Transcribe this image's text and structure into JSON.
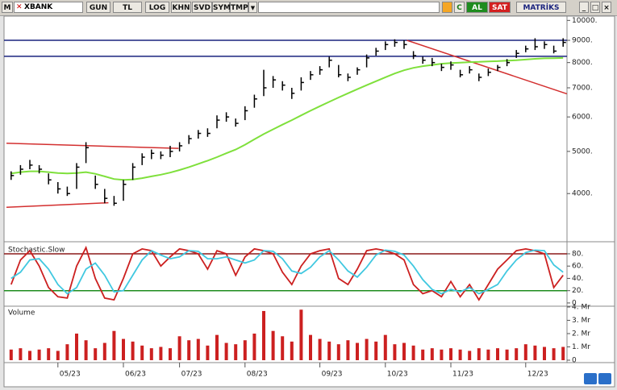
{
  "toolbar": {
    "menu": "M",
    "symbol": "XBANK",
    "buttons": [
      "GUN",
      "TL",
      "LOG",
      "KHN",
      "SVD",
      "SYM",
      "TMP"
    ],
    "buy": "AL",
    "sell": "SAT",
    "brand": "MATRİKS"
  },
  "chart_data": [
    {
      "type": "ohlc",
      "log_scale": true,
      "color": "#000000",
      "categories": [
        null,
        null,
        null,
        null,
        null,
        "05/23",
        null,
        null,
        null,
        null,
        null,
        null,
        "06/23",
        null,
        null,
        null,
        null,
        null,
        "07/23",
        null,
        null,
        null,
        null,
        null,
        null,
        "08/23",
        null,
        null,
        null,
        null,
        null,
        null,
        null,
        "09/23",
        null,
        null,
        null,
        null,
        null,
        null,
        "10/23",
        null,
        null,
        null,
        null,
        null,
        null,
        "11/23",
        null,
        null,
        null,
        null,
        null,
        null,
        null,
        "12/23",
        null,
        null,
        null,
        null
      ],
      "high": [
        4500,
        4650,
        4780,
        4650,
        4450,
        4250,
        4150,
        4700,
        5250,
        4400,
        4100,
        3950,
        4300,
        4700,
        4950,
        5050,
        5000,
        5150,
        5250,
        5450,
        5600,
        5650,
        6050,
        6150,
        5950,
        6350,
        6750,
        7700,
        7450,
        7250,
        7000,
        7400,
        7650,
        7850,
        8250,
        7900,
        7550,
        7800,
        8350,
        8650,
        8950,
        9050,
        9000,
        8500,
        8250,
        8200,
        7950,
        8050,
        7700,
        7850,
        7550,
        7750,
        7900,
        8150,
        8550,
        8750,
        9100,
        8950,
        8750,
        9100
      ],
      "low": [
        4300,
        4420,
        4550,
        4450,
        4200,
        4000,
        3950,
        4100,
        4700,
        4100,
        3800,
        3750,
        3850,
        4300,
        4650,
        4800,
        4800,
        4850,
        5000,
        5200,
        5350,
        5400,
        5650,
        5850,
        5700,
        5900,
        6300,
        6700,
        7000,
        6900,
        6600,
        6900,
        7300,
        7500,
        7800,
        7400,
        7250,
        7500,
        7800,
        8300,
        8550,
        8700,
        8600,
        8150,
        7950,
        7850,
        7650,
        7700,
        7400,
        7550,
        7250,
        7450,
        7650,
        7850,
        8200,
        8450,
        8550,
        8600,
        8400,
        8700
      ],
      "close": [
        4400,
        4550,
        4650,
        4550,
        4300,
        4100,
        4000,
        4600,
        5100,
        4200,
        3900,
        3800,
        4200,
        4600,
        4850,
        4950,
        4900,
        5000,
        5150,
        5350,
        5500,
        5500,
        5900,
        6000,
        5800,
        6200,
        6600,
        7000,
        7300,
        7100,
        6800,
        7200,
        7500,
        7700,
        8100,
        7500,
        7400,
        7700,
        8200,
        8500,
        8800,
        8900,
        8800,
        8300,
        8100,
        8000,
        7800,
        7900,
        7500,
        7700,
        7400,
        7600,
        7800,
        8000,
        8400,
        8600,
        8700,
        8800,
        8500,
        8900
      ],
      "moving_average": {
        "color": "#7fe03c",
        "values": [
          4450,
          4480,
          4500,
          4500,
          4480,
          4460,
          4450,
          4460,
          4480,
          4440,
          4380,
          4320,
          4300,
          4310,
          4340,
          4380,
          4420,
          4470,
          4530,
          4600,
          4680,
          4760,
          4850,
          4950,
          5050,
          5180,
          5330,
          5480,
          5620,
          5760,
          5900,
          6050,
          6200,
          6350,
          6500,
          6650,
          6800,
          6950,
          7100,
          7250,
          7400,
          7550,
          7680,
          7780,
          7850,
          7900,
          7950,
          7980,
          8000,
          8020,
          8030,
          8050,
          8060,
          8080,
          8100,
          8130,
          8160,
          8180,
          8190,
          8200
        ]
      },
      "hlines": [
        {
          "value": 9000,
          "color": "#1a237e"
        },
        {
          "value": 8270,
          "color": "#1a237e"
        }
      ],
      "trend_lines": [
        {
          "color": "#d32f2f",
          "start": [
            -0.5,
            5220
          ],
          "end": [
            17.9,
            5080
          ]
        },
        {
          "color": "#d32f2f",
          "start": [
            -0.5,
            3720
          ],
          "end": [
            10.4,
            3810
          ]
        },
        {
          "color": "#d32f2f",
          "start": [
            42.3,
            9000
          ],
          "end": [
            59.4,
            6780
          ]
        }
      ],
      "ylim": [
        3100,
        10230
      ],
      "yticks": [
        {
          "value": 10000,
          "label": "10000."
        },
        {
          "value": 9000,
          "label": "9000."
        },
        {
          "value": 8000,
          "label": "8000."
        },
        {
          "value": 7000,
          "label": "7000."
        },
        {
          "value": 6000,
          "label": "6000."
        },
        {
          "value": 5000,
          "label": "5000."
        },
        {
          "value": 4000,
          "label": "4000."
        }
      ]
    },
    {
      "type": "line",
      "title": "Stochastic.Slow",
      "series": [
        {
          "color": "#cc2020",
          "values": [
            30,
            70,
            85,
            60,
            25,
            10,
            8,
            60,
            90,
            40,
            8,
            5,
            40,
            80,
            88,
            85,
            60,
            75,
            88,
            85,
            80,
            55,
            85,
            80,
            45,
            75,
            88,
            85,
            80,
            50,
            30,
            60,
            80,
            85,
            88,
            40,
            30,
            55,
            85,
            88,
            85,
            80,
            70,
            30,
            15,
            20,
            10,
            35,
            10,
            30,
            5,
            30,
            55,
            70,
            85,
            88,
            85,
            80,
            25,
            45
          ]
        },
        {
          "color": "#40c8e0",
          "values": [
            40,
            50,
            70,
            72,
            55,
            30,
            15,
            25,
            55,
            65,
            45,
            18,
            20,
            45,
            70,
            85,
            78,
            72,
            75,
            85,
            84,
            72,
            72,
            75,
            70,
            65,
            70,
            85,
            84,
            72,
            52,
            48,
            58,
            75,
            85,
            70,
            52,
            42,
            58,
            78,
            86,
            84,
            78,
            60,
            38,
            22,
            15,
            22,
            18,
            25,
            15,
            22,
            30,
            52,
            70,
            82,
            86,
            85,
            62,
            50
          ]
        }
      ],
      "hlines": [
        {
          "value": 80,
          "color": "#8b1a1a"
        },
        {
          "value": 20,
          "color": "#1e8c1e"
        }
      ],
      "ylim": [
        -4,
        97
      ],
      "yticks": [
        {
          "value": 80,
          "label": "80."
        },
        {
          "value": 60,
          "label": "60."
        },
        {
          "value": 40,
          "label": "40."
        },
        {
          "value": 20,
          "label": "20."
        },
        0
      ]
    },
    {
      "type": "bar",
      "title": "Volume",
      "color": "#cc2020",
      "values": [
        0.8,
        0.9,
        0.7,
        0.8,
        0.9,
        0.7,
        1.2,
        2.0,
        1.5,
        0.9,
        1.3,
        2.2,
        1.6,
        1.4,
        1.1,
        0.9,
        1.0,
        0.9,
        1.8,
        1.5,
        1.6,
        1.1,
        1.9,
        1.3,
        1.2,
        1.5,
        2.0,
        3.7,
        2.2,
        1.8,
        1.4,
        3.8,
        1.9,
        1.6,
        1.4,
        1.2,
        1.5,
        1.3,
        1.6,
        1.4,
        1.9,
        1.2,
        1.3,
        1.1,
        0.8,
        0.9,
        0.8,
        0.9,
        0.8,
        0.7,
        0.9,
        0.8,
        0.9,
        0.8,
        0.9,
        1.2,
        1.1,
        1.0,
        0.9,
        1.0
      ],
      "ylim": [
        0,
        4
      ],
      "yticks": [
        {
          "value": 4,
          "label": "4. Mr"
        },
        {
          "value": 3,
          "label": "3. Mr"
        },
        {
          "value": 2,
          "label": "2. Mr"
        },
        {
          "value": 1,
          "label": "1. Mr"
        },
        0
      ]
    }
  ]
}
